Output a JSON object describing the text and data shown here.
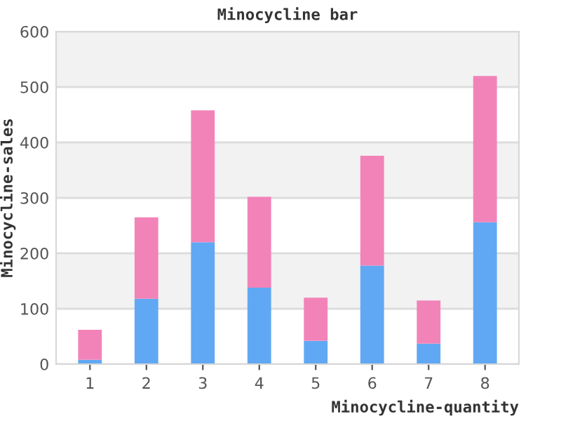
{
  "chart_data": {
    "type": "bar",
    "title": "Minocycline bar",
    "xlabel": "Minocycline-quantity",
    "ylabel": "Minocycline-sales",
    "categories": [
      "1",
      "2",
      "3",
      "4",
      "5",
      "6",
      "7",
      "8"
    ],
    "stacked": true,
    "series": [
      {
        "color": "#60a8f4",
        "values": [
          8,
          118,
          220,
          138,
          42,
          178,
          37,
          256
        ]
      },
      {
        "color": "#f283b8",
        "values": [
          54,
          147,
          238,
          164,
          78,
          198,
          78,
          264
        ]
      }
    ],
    "ylim": [
      0,
      600
    ],
    "yticks": [
      0,
      100,
      200,
      300,
      400,
      500,
      600
    ],
    "grid": "y",
    "bands": [
      {
        "axis": "y",
        "from": 100,
        "to": 200,
        "color": "#f2f2f2"
      },
      {
        "axis": "y",
        "from": 300,
        "to": 400,
        "color": "#f2f2f2"
      },
      {
        "axis": "y",
        "from": 500,
        "to": 600,
        "color": "#f2f2f2"
      }
    ]
  }
}
